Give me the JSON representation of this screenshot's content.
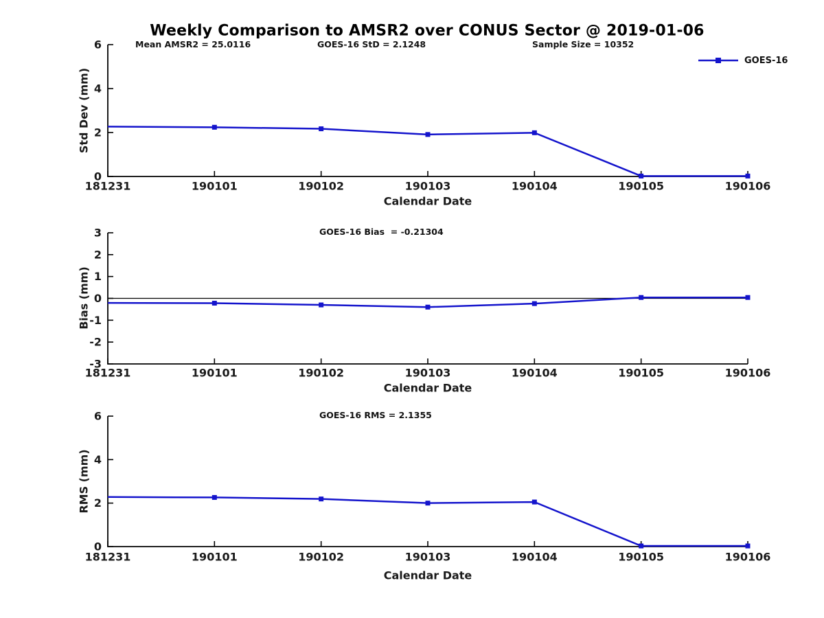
{
  "title": "Weekly Comparison to AMSR2 over CONUS Sector @ 2019-01-06",
  "colors": {
    "line": "#1414CC",
    "axis": "#000000",
    "text": "#1a1a1a"
  },
  "legend": {
    "label": "GOES-16"
  },
  "xlabel": "Calendar Date",
  "chart_data": [
    {
      "type": "line",
      "name": "std-dev",
      "ylabel": "Std Dev (mm)",
      "xlabel": "Calendar Date",
      "categories": [
        "181231",
        "190101",
        "190102",
        "190103",
        "190104",
        "190105",
        "190106"
      ],
      "series": [
        {
          "name": "GOES-16",
          "values": [
            2.27,
            2.24,
            2.17,
            1.91,
            1.99,
            0.02,
            0.02
          ]
        }
      ],
      "ylim": [
        0,
        6
      ],
      "yticks": [
        0,
        2,
        4,
        6
      ],
      "zero_line": false,
      "legend_position": "top-right",
      "grid": false,
      "annotations": [
        "Mean AMSR2 = 25.0116",
        "GOES-16 StD = 2.1248",
        "Sample Size = 10352"
      ]
    },
    {
      "type": "line",
      "name": "bias",
      "ylabel": "Bias (mm)",
      "xlabel": "Calendar Date",
      "categories": [
        "181231",
        "190101",
        "190102",
        "190103",
        "190104",
        "190105",
        "190106"
      ],
      "series": [
        {
          "name": "GOES-16",
          "values": [
            -0.21,
            -0.22,
            -0.3,
            -0.4,
            -0.24,
            0.04,
            0.04
          ]
        }
      ],
      "ylim": [
        -3,
        3
      ],
      "yticks": [
        3,
        2,
        1,
        0,
        -1,
        -2,
        -3
      ],
      "zero_line": true,
      "grid": false,
      "annotation": "GOES-16 Bias  = -0.21304"
    },
    {
      "type": "line",
      "name": "rms",
      "ylabel": "RMS (mm)",
      "xlabel": "Calendar Date",
      "categories": [
        "181231",
        "190101",
        "190102",
        "190103",
        "190104",
        "190105",
        "190106"
      ],
      "series": [
        {
          "name": "GOES-16",
          "values": [
            2.28,
            2.26,
            2.19,
            2.0,
            2.05,
            0.03,
            0.03
          ]
        }
      ],
      "ylim": [
        0,
        6
      ],
      "yticks": [
        0,
        2,
        4,
        6
      ],
      "zero_line": false,
      "grid": false,
      "annotation": "GOES-16 RMS = 2.1355"
    }
  ]
}
